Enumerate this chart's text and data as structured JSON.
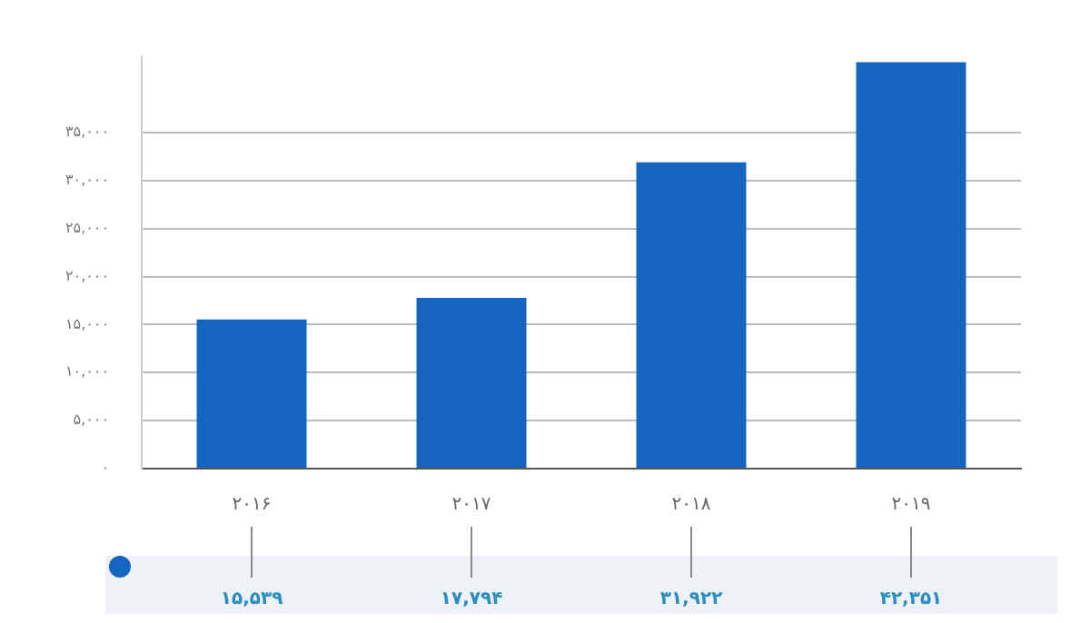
{
  "chart_data": {
    "type": "bar",
    "categories": [
      "۲۰۱۶",
      "۲۰۱۷",
      "۲۰۱۸",
      "۲۰۱۹"
    ],
    "values": [
      15539,
      17794,
      31922,
      42351
    ],
    "value_labels": [
      "۱۵,۵۳۹",
      "۱۷,۷۹۴",
      "۳۱,۹۲۲",
      "۴۲,۳۵۱"
    ],
    "color": "#1565c0",
    "ylim": [
      0,
      43000
    ],
    "yticks": [
      {
        "value": 0,
        "label": "۰"
      },
      {
        "value": 5000,
        "label": "۵,۰۰۰"
      },
      {
        "value": 10000,
        "label": "۱۰,۰۰۰"
      },
      {
        "value": 15000,
        "label": "۱۵,۰۰۰"
      },
      {
        "value": 20000,
        "label": "۲۰,۰۰۰"
      },
      {
        "value": 25000,
        "label": "۲۵,۰۰۰"
      },
      {
        "value": 30000,
        "label": "۳۰,۰۰۰"
      },
      {
        "value": 35000,
        "label": "۳۵,۰۰۰"
      }
    ],
    "grid": "y"
  }
}
